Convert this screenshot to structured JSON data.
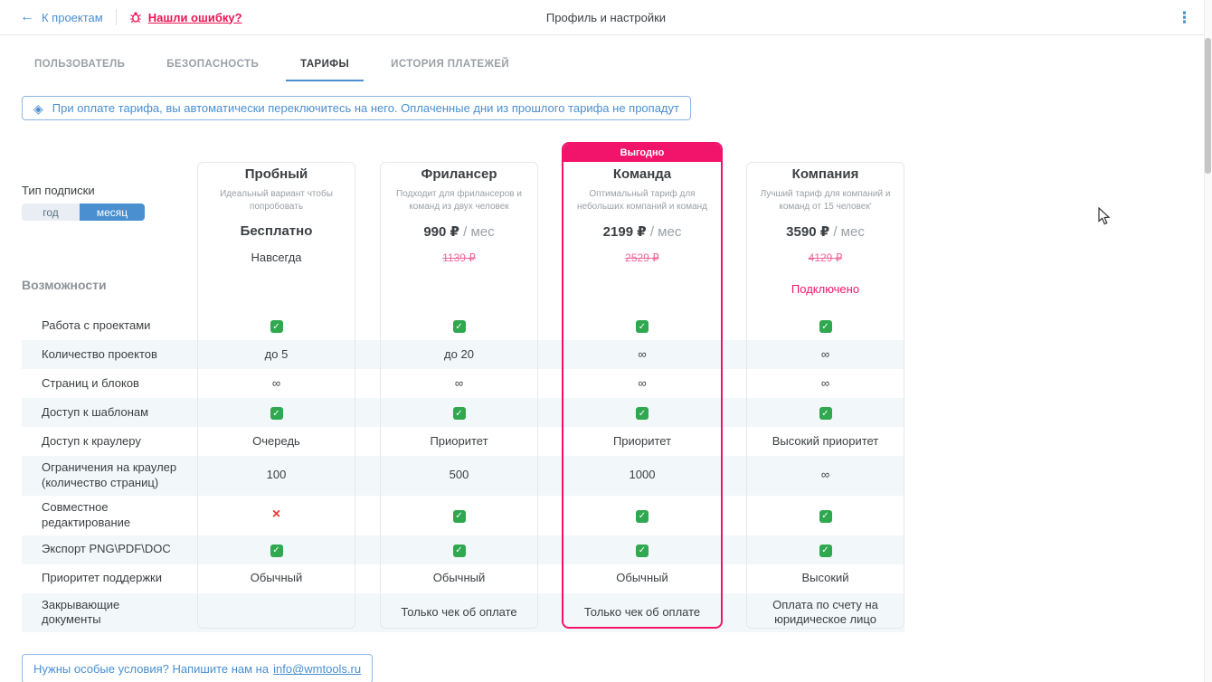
{
  "topbar": {
    "back_label": "К проектам",
    "bug_label": "Нашли ошибку?",
    "title": "Профиль и настройки",
    "menu_icon": "⋮"
  },
  "tabs": [
    {
      "label": "ПОЛЬЗОВАТЕЛЬ",
      "active": false
    },
    {
      "label": "БЕЗОПАСНОСТЬ",
      "active": false
    },
    {
      "label": "ТАРИФЫ",
      "active": true
    },
    {
      "label": "ИСТОРИЯ ПЛАТЕЖЕЙ",
      "active": false
    }
  ],
  "banner": {
    "text": "При оплате тарифа, вы автоматически переключитесь на него. Оплаченные дни из прошлого тарифа не пропадут"
  },
  "subscription": {
    "label": "Тип подписки",
    "options": [
      {
        "label": "год",
        "selected": false
      },
      {
        "label": "месяц",
        "selected": true
      }
    ]
  },
  "features_heading": "Возможности",
  "plans": [
    {
      "name": "Пробный",
      "description": "Идеальный вариант чтобы попробовать",
      "price": "Бесплатно",
      "price_suffix": "",
      "old_price": "",
      "note": "Навсегда",
      "badge": "",
      "connected": ""
    },
    {
      "name": "Фрилансер",
      "description": "Подходит для фрилансеров и команд из двух человек",
      "price": "990 ₽",
      "price_suffix": "/ мес",
      "old_price": "1139 ₽",
      "note": "",
      "badge": "",
      "connected": ""
    },
    {
      "name": "Команда",
      "description": "Оптимальный тариф для небольших компаний и команд",
      "price": "2199 ₽",
      "price_suffix": "/ мес",
      "old_price": "2529 ₽",
      "note": "",
      "badge": "Выгодно",
      "connected": ""
    },
    {
      "name": "Компания",
      "description": "Лучший тариф для компаний и команд от 15 человек'",
      "price": "3590 ₽",
      "price_suffix": "/ мес",
      "old_price": "4129 ₽",
      "note": "",
      "badge": "",
      "connected": "Подключено"
    }
  ],
  "features": [
    {
      "label": "Работа с проектами",
      "values": [
        "check",
        "check",
        "check",
        "check"
      ]
    },
    {
      "label": "Количество проектов",
      "values": [
        "до 5",
        "до 20",
        "∞",
        "∞"
      ]
    },
    {
      "label": "Страниц и блоков",
      "values": [
        "∞",
        "∞",
        "∞",
        "∞"
      ]
    },
    {
      "label": "Доступ к шаблонам",
      "values": [
        "check",
        "check",
        "check",
        "check"
      ]
    },
    {
      "label": "Доступ к краулеру",
      "values": [
        "Очередь",
        "Приоритет",
        "Приоритет",
        "Высокий приоритет"
      ]
    },
    {
      "label": "Ограничения на краулер (количество страниц)",
      "values": [
        "100",
        "500",
        "1000",
        "∞"
      ]
    },
    {
      "label": "Совместное редактирование",
      "values": [
        "cross",
        "check",
        "check",
        "check"
      ]
    },
    {
      "label": "Экспорт PNG\\PDF\\DOC",
      "values": [
        "check",
        "check",
        "check",
        "check"
      ]
    },
    {
      "label": "Приоритет поддержки",
      "values": [
        "Обычный",
        "Обычный",
        "Обычный",
        "Высокий"
      ]
    },
    {
      "label": "Закрывающие документы",
      "values": [
        "",
        "Только чек об оплате",
        "Только чек об оплате",
        "Оплата по счету на юридическое лицо"
      ]
    }
  ],
  "contact": {
    "text": "Нужны особые условия? Напишите нам на",
    "email": "info@wmtools.ru"
  },
  "colors": {
    "accent_blue": "#4a8fd0",
    "accent_pink": "#f2146b",
    "old_price_pink": "#f0679c",
    "check_green": "#2fa84f",
    "cross_red": "#e53935",
    "stripe_bg": "#f2f7fa"
  }
}
